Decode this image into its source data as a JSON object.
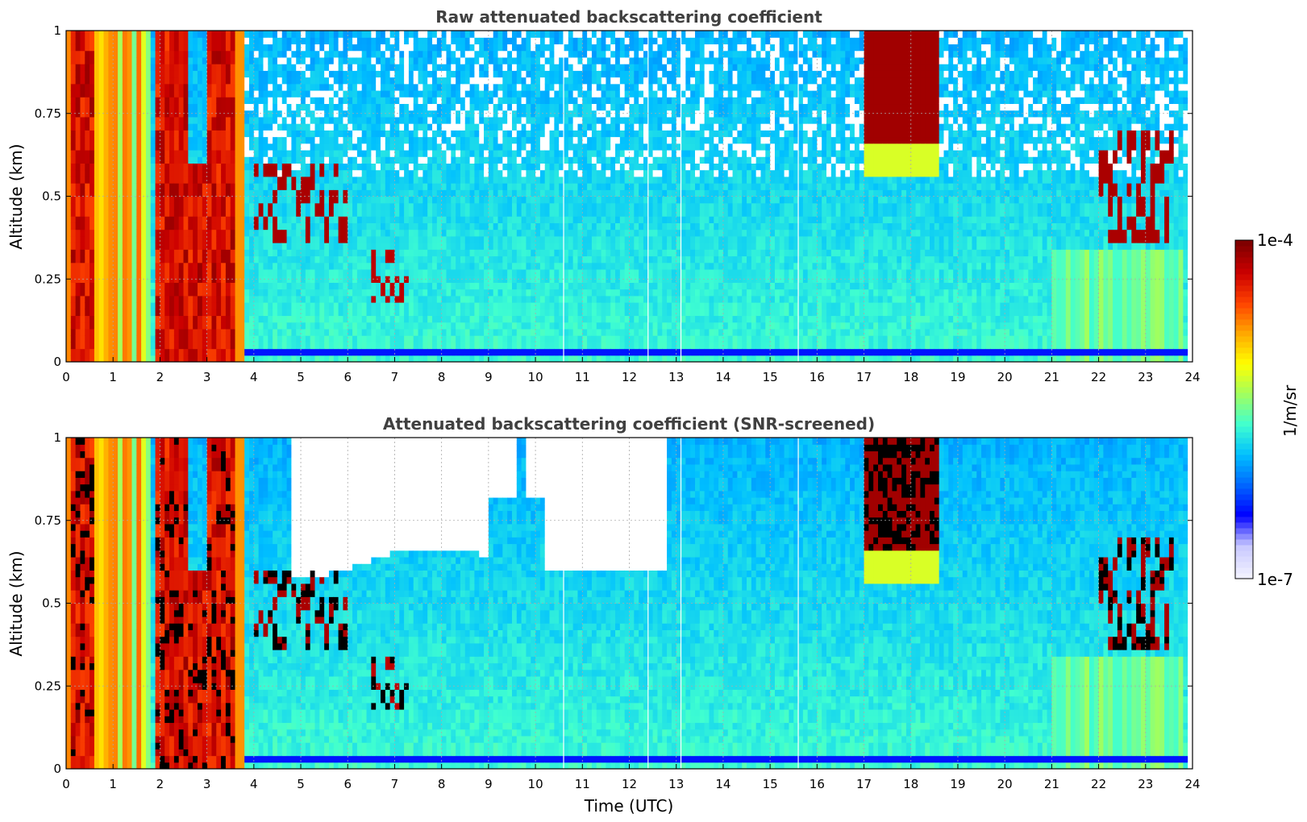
{
  "chart_data": [
    {
      "type": "heatmap",
      "title": "Raw attenuated backscattering coefficient",
      "xlabel": "",
      "ylabel": "Altitude (km)",
      "xlim": [
        0,
        24
      ],
      "ylim": [
        0,
        1
      ],
      "x_ticks": [
        "0",
        "1",
        "2",
        "3",
        "4",
        "5",
        "6",
        "7",
        "8",
        "9",
        "10",
        "11",
        "12",
        "13",
        "14",
        "15",
        "16",
        "17",
        "18",
        "19",
        "20",
        "21",
        "22",
        "23",
        "24"
      ],
      "y_ticks": [
        "0",
        "0.25",
        "0.5",
        "0.75",
        "1"
      ],
      "y_tick_values": [
        0,
        0.25,
        0.5,
        0.75,
        1
      ],
      "grid": true,
      "screened": false
    },
    {
      "type": "heatmap",
      "title": "Attenuated backscattering coefficient (SNR-screened)",
      "xlabel": "Time (UTC)",
      "ylabel": "Altitude (km)",
      "xlim": [
        0,
        24
      ],
      "ylim": [
        0,
        1
      ],
      "x_ticks": [
        "0",
        "1",
        "2",
        "3",
        "4",
        "5",
        "6",
        "7",
        "8",
        "9",
        "10",
        "11",
        "12",
        "13",
        "14",
        "15",
        "16",
        "17",
        "18",
        "19",
        "20",
        "21",
        "22",
        "23",
        "24"
      ],
      "y_ticks": [
        "0",
        "0.25",
        "0.5",
        "0.75",
        "1"
      ],
      "y_tick_values": [
        0,
        0.25,
        0.5,
        0.75,
        1
      ],
      "grid": true,
      "screened": true
    }
  ],
  "colorbar": {
    "label": "1/m/sr",
    "min_label": "1e-7",
    "max_label": "1e-4",
    "placement": "right",
    "colormap": [
      "#f0f0ff",
      "#c8c8ff",
      "#0000ff",
      "#0066ff",
      "#00bfff",
      "#40ffd0",
      "#a0ff60",
      "#ffff00",
      "#ffaa00",
      "#ff4400",
      "#cc0000",
      "#800000"
    ]
  }
}
